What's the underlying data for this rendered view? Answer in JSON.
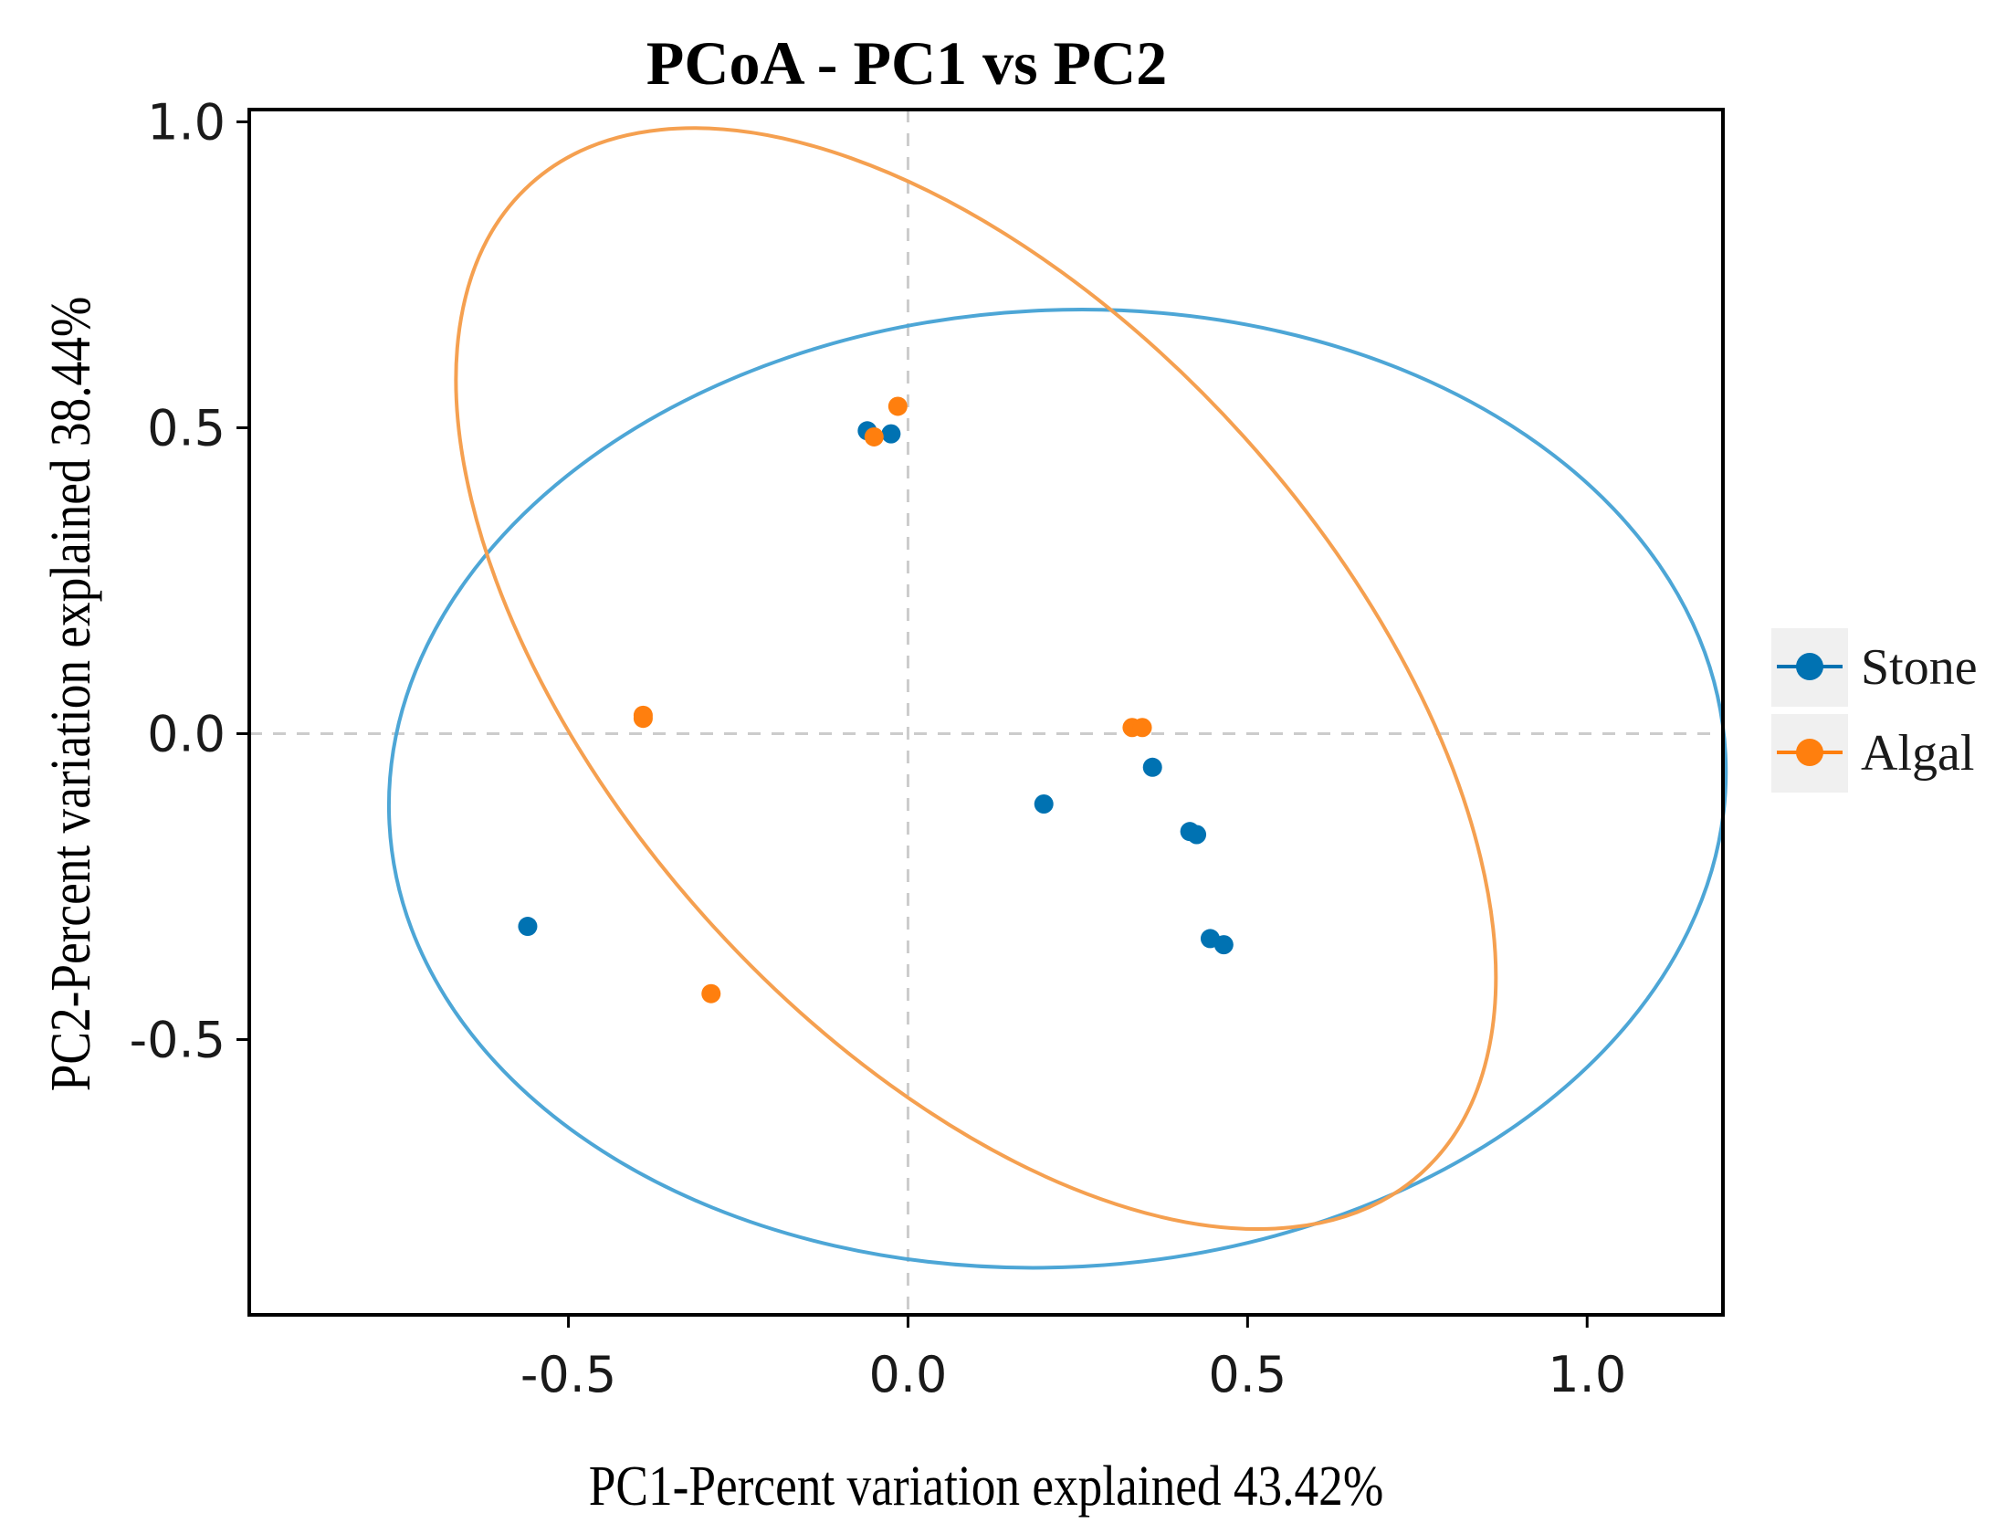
{
  "chart_data": {
    "type": "scatter",
    "title": "PCoA - PC1 vs PC2",
    "xlabel": "PC1-Percent variation explained 43.42%",
    "ylabel": "PC2-Percent variation explained 38.44%",
    "xlim": [
      -0.97,
      1.2
    ],
    "ylim": [
      -0.95,
      1.02
    ],
    "xticks": [
      -0.5,
      0.0,
      0.5,
      1.0
    ],
    "xtick_labels": [
      "-0.5",
      "0.0",
      "0.5",
      "1.0"
    ],
    "yticks": [
      -0.5,
      0.0,
      0.5,
      1.0
    ],
    "ytick_labels": [
      "-0.5",
      "0.0",
      "0.5",
      "1.0"
    ],
    "reference_lines": {
      "x": 0.0,
      "y": 0.0
    },
    "legend_position": "right",
    "series": [
      {
        "name": "Stone",
        "color": "#0072b2",
        "ellipse_color": "#4da6d6",
        "points": [
          {
            "x": -0.56,
            "y": -0.315
          },
          {
            "x": -0.06,
            "y": 0.495
          },
          {
            "x": -0.025,
            "y": 0.49
          },
          {
            "x": 0.2,
            "y": -0.115
          },
          {
            "x": 0.36,
            "y": -0.055
          },
          {
            "x": 0.415,
            "y": -0.16
          },
          {
            "x": 0.425,
            "y": -0.165
          },
          {
            "x": 0.445,
            "y": -0.335
          },
          {
            "x": 0.465,
            "y": -0.345
          }
        ],
        "ellipse": {
          "cx": 0.22,
          "cy": -0.09,
          "rx": 0.985,
          "ry": 0.782,
          "angle_deg": -3
        }
      },
      {
        "name": "Algal",
        "color": "#ff7f0e",
        "ellipse_color": "#f5a050",
        "points": [
          {
            "x": -0.39,
            "y": 0.025
          },
          {
            "x": -0.39,
            "y": 0.03
          },
          {
            "x": -0.29,
            "y": -0.425
          },
          {
            "x": -0.05,
            "y": 0.485
          },
          {
            "x": -0.015,
            "y": 0.535
          },
          {
            "x": 0.33,
            "y": 0.01
          },
          {
            "x": 0.345,
            "y": 0.01
          }
        ],
        "ellipse": {
          "cx": 0.1,
          "cy": 0.09,
          "rx": 0.98,
          "ry": 0.59,
          "angle_deg": 48
        }
      }
    ]
  }
}
